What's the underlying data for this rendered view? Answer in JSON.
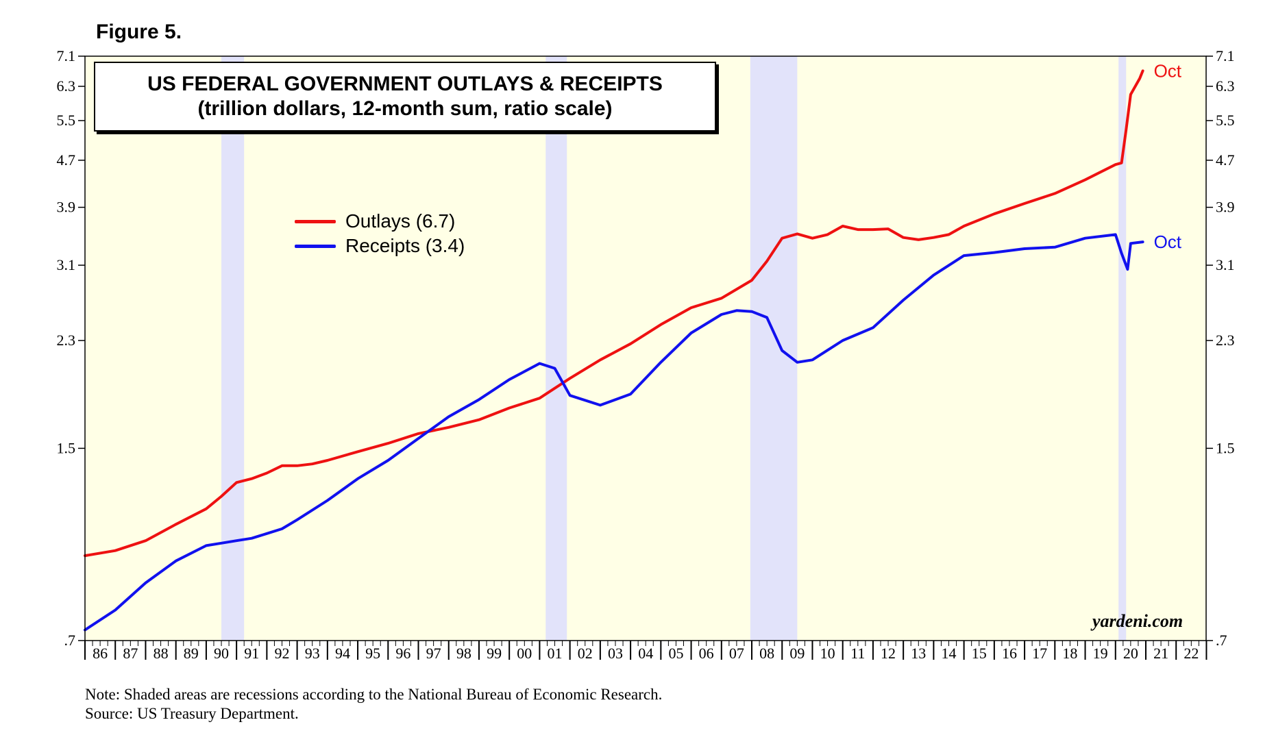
{
  "figure_label": "Figure 5.",
  "chart_data": {
    "type": "line",
    "title": "US FEDERAL GOVERNMENT OUTLAYS & RECEIPTS",
    "subtitle": "(trillion dollars, 12-month sum, ratio scale)",
    "xlabel": "",
    "ylabel": "",
    "y_scale": "log",
    "ylim": [
      0.7,
      7.1
    ],
    "xlim": [
      1986.0,
      2022.99
    ],
    "y_ticks": [
      0.7,
      1.5,
      2.3,
      3.1,
      3.9,
      4.7,
      5.5,
      6.3,
      7.1
    ],
    "y_tick_labels": [
      ".7",
      "1.5",
      "2.3",
      "3.1",
      "3.9",
      "4.7",
      "5.5",
      "6.3",
      "7.1"
    ],
    "x_tick_labels": [
      "86",
      "87",
      "88",
      "89",
      "90",
      "91",
      "92",
      "93",
      "94",
      "95",
      "96",
      "97",
      "98",
      "99",
      "00",
      "01",
      "02",
      "03",
      "04",
      "05",
      "06",
      "07",
      "08",
      "09",
      "10",
      "11",
      "12",
      "13",
      "14",
      "15",
      "16",
      "17",
      "18",
      "19",
      "20",
      "21",
      "22"
    ],
    "recessions": [
      [
        1990.5,
        1991.25
      ],
      [
        2001.2,
        2001.9
      ],
      [
        2007.95,
        2009.5
      ],
      [
        2020.1,
        2020.35
      ]
    ],
    "series": [
      {
        "name": "Outlays",
        "legend_label": "Outlays (6.7)",
        "color": "#ee1111",
        "end_label": "Oct",
        "points": [
          [
            1986.0,
            0.98
          ],
          [
            1987.0,
            1.0
          ],
          [
            1988.0,
            1.04
          ],
          [
            1989.0,
            1.11
          ],
          [
            1990.0,
            1.18
          ],
          [
            1990.5,
            1.24
          ],
          [
            1991.0,
            1.31
          ],
          [
            1991.5,
            1.33
          ],
          [
            1992.0,
            1.36
          ],
          [
            1992.5,
            1.4
          ],
          [
            1993.0,
            1.4
          ],
          [
            1993.5,
            1.41
          ],
          [
            1994.0,
            1.43
          ],
          [
            1995.0,
            1.48
          ],
          [
            1996.0,
            1.53
          ],
          [
            1997.0,
            1.59
          ],
          [
            1998.0,
            1.63
          ],
          [
            1999.0,
            1.68
          ],
          [
            2000.0,
            1.76
          ],
          [
            2001.0,
            1.83
          ],
          [
            2002.0,
            1.98
          ],
          [
            2003.0,
            2.13
          ],
          [
            2004.0,
            2.27
          ],
          [
            2005.0,
            2.45
          ],
          [
            2006.0,
            2.62
          ],
          [
            2007.0,
            2.72
          ],
          [
            2008.0,
            2.92
          ],
          [
            2008.5,
            3.15
          ],
          [
            2009.0,
            3.45
          ],
          [
            2009.5,
            3.51
          ],
          [
            2010.0,
            3.45
          ],
          [
            2010.5,
            3.5
          ],
          [
            2011.0,
            3.62
          ],
          [
            2011.5,
            3.57
          ],
          [
            2012.0,
            3.57
          ],
          [
            2012.5,
            3.58
          ],
          [
            2013.0,
            3.46
          ],
          [
            2013.5,
            3.43
          ],
          [
            2014.0,
            3.46
          ],
          [
            2014.5,
            3.5
          ],
          [
            2015.0,
            3.62
          ],
          [
            2016.0,
            3.8
          ],
          [
            2017.0,
            3.96
          ],
          [
            2018.0,
            4.12
          ],
          [
            2019.0,
            4.35
          ],
          [
            2020.0,
            4.62
          ],
          [
            2020.2,
            4.65
          ],
          [
            2020.35,
            5.3
          ],
          [
            2020.5,
            6.1
          ],
          [
            2020.8,
            6.5
          ],
          [
            2020.9,
            6.7
          ]
        ]
      },
      {
        "name": "Receipts",
        "legend_label": "Receipts (3.4)",
        "color": "#1111ee",
        "end_label": "Oct",
        "points": [
          [
            1986.0,
            0.73
          ],
          [
            1987.0,
            0.79
          ],
          [
            1988.0,
            0.88
          ],
          [
            1989.0,
            0.96
          ],
          [
            1990.0,
            1.02
          ],
          [
            1990.5,
            1.03
          ],
          [
            1991.0,
            1.04
          ],
          [
            1991.5,
            1.05
          ],
          [
            1992.0,
            1.07
          ],
          [
            1992.5,
            1.09
          ],
          [
            1993.0,
            1.13
          ],
          [
            1994.0,
            1.22
          ],
          [
            1995.0,
            1.33
          ],
          [
            1996.0,
            1.43
          ],
          [
            1997.0,
            1.56
          ],
          [
            1998.0,
            1.7
          ],
          [
            1999.0,
            1.82
          ],
          [
            2000.0,
            1.97
          ],
          [
            2001.0,
            2.1
          ],
          [
            2001.5,
            2.06
          ],
          [
            2002.0,
            1.85
          ],
          [
            2003.0,
            1.78
          ],
          [
            2004.0,
            1.86
          ],
          [
            2005.0,
            2.11
          ],
          [
            2006.0,
            2.37
          ],
          [
            2007.0,
            2.55
          ],
          [
            2007.5,
            2.59
          ],
          [
            2008.0,
            2.58
          ],
          [
            2008.5,
            2.52
          ],
          [
            2009.0,
            2.21
          ],
          [
            2009.5,
            2.11
          ],
          [
            2010.0,
            2.13
          ],
          [
            2011.0,
            2.3
          ],
          [
            2012.0,
            2.42
          ],
          [
            2013.0,
            2.7
          ],
          [
            2014.0,
            2.98
          ],
          [
            2015.0,
            3.22
          ],
          [
            2016.0,
            3.26
          ],
          [
            2017.0,
            3.31
          ],
          [
            2018.0,
            3.33
          ],
          [
            2019.0,
            3.45
          ],
          [
            2020.0,
            3.5
          ],
          [
            2020.2,
            3.25
          ],
          [
            2020.4,
            3.05
          ],
          [
            2020.5,
            3.38
          ],
          [
            2020.9,
            3.4
          ]
        ]
      }
    ]
  },
  "notes": {
    "line1": "Note: Shaded areas are recessions according to the National Bureau of Economic Research.",
    "line2": "Source: US Treasury Department."
  },
  "watermark": "yardeni.com"
}
